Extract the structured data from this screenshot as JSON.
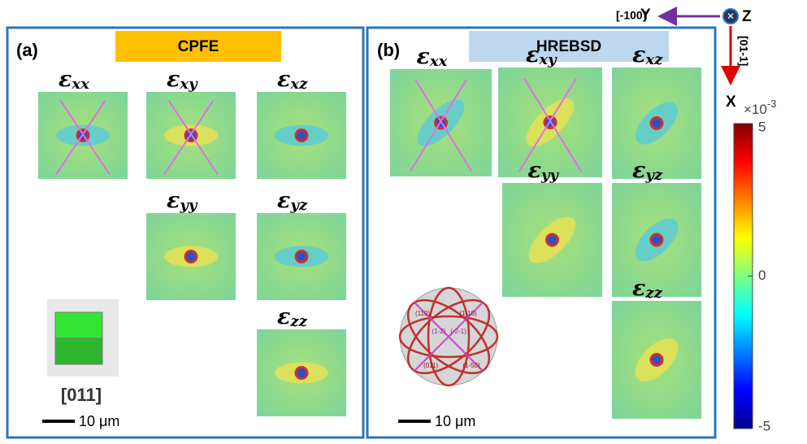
{
  "panels": [
    {
      "tag": "(a)",
      "title": "CPFE",
      "title_color": "#ffc000",
      "maps": [
        {
          "symbol": "ε",
          "sub": "xx"
        },
        {
          "symbol": "ε",
          "sub": "xy"
        },
        {
          "symbol": "ε",
          "sub": "xz"
        },
        {
          "symbol": "ε",
          "sub": "yy"
        },
        {
          "symbol": "ε",
          "sub": "yz"
        },
        {
          "symbol": "ε",
          "sub": "zz"
        }
      ],
      "orientation": "[011]",
      "scale_bar": "10 μm"
    },
    {
      "tag": "(b)",
      "title": "HREBSD",
      "title_color": "#bdd7ee",
      "maps": [
        {
          "symbol": "ε",
          "sub": "xx"
        },
        {
          "symbol": "ε",
          "sub": "xy"
        },
        {
          "symbol": "ε",
          "sub": "xz"
        },
        {
          "symbol": "ε",
          "sub": "yy"
        },
        {
          "symbol": "ε",
          "sub": "yz"
        },
        {
          "symbol": "ε",
          "sub": "zz"
        }
      ],
      "pole_labels": [
        "(110)",
        "(1-10)",
        "(011)",
        "(1-50)",
        "(1-2)",
        "(-2-1)"
      ],
      "scale_bar": "10 μm"
    }
  ],
  "axes": {
    "y_dir": "[-100]",
    "y": "Y",
    "z": "Z",
    "x_dir": "[01-1]",
    "x": "X"
  },
  "colorbar": {
    "multiplier": "×10",
    "exponent": "-3",
    "lim": [
      -5,
      5
    ],
    "ticks": [
      5,
      0,
      -5
    ]
  }
}
